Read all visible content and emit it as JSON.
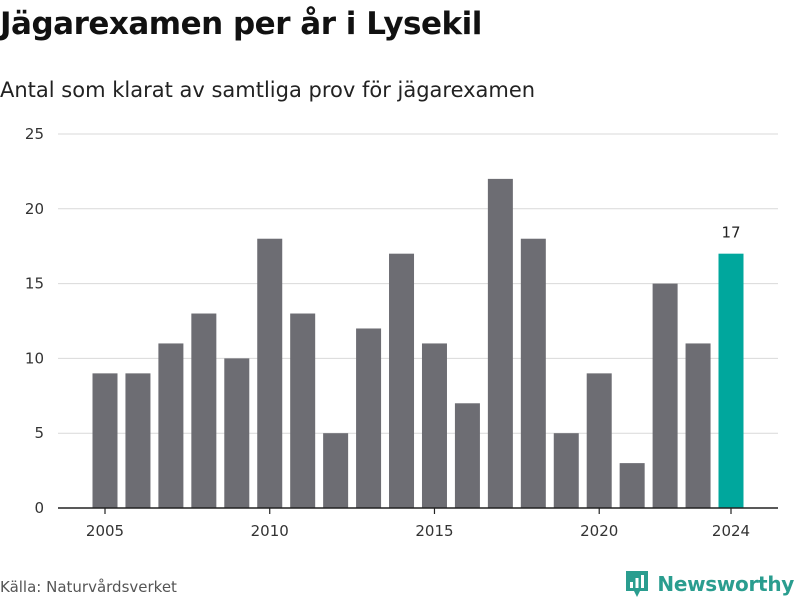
{
  "title": "Jägarexamen per år i Lysekil",
  "subtitle": "Antal som klarat av samtliga prov för jägarexamen",
  "source": "Källa: Naturvårdsverket",
  "brand": "Newsworthy",
  "colors": {
    "bar": "#6d6d73",
    "highlight": "#00a79d",
    "grid": "#d9d9d9",
    "axis": "#222222",
    "brand": "#2a9d8f"
  },
  "chart_data": {
    "type": "bar",
    "title": "Jägarexamen per år i Lysekil",
    "subtitle": "Antal som klarat av samtliga prov för jägarexamen",
    "xlabel": "",
    "ylabel": "",
    "categories": [
      2005,
      2006,
      2007,
      2008,
      2009,
      2010,
      2011,
      2012,
      2013,
      2014,
      2015,
      2016,
      2017,
      2018,
      2019,
      2020,
      2021,
      2022,
      2023,
      2024
    ],
    "values": [
      9,
      9,
      11,
      13,
      10,
      18,
      13,
      5,
      12,
      17,
      11,
      7,
      22,
      18,
      5,
      9,
      3,
      15,
      11,
      17
    ],
    "ylim": [
      0,
      25
    ],
    "yticks": [
      0,
      5,
      10,
      15,
      20,
      25
    ],
    "xticks": [
      2005,
      2010,
      2015,
      2020,
      2024
    ],
    "highlight": 2024,
    "data_labels": [
      {
        "x": 2024,
        "text": "17"
      }
    ],
    "grid": true,
    "legend": "none"
  }
}
